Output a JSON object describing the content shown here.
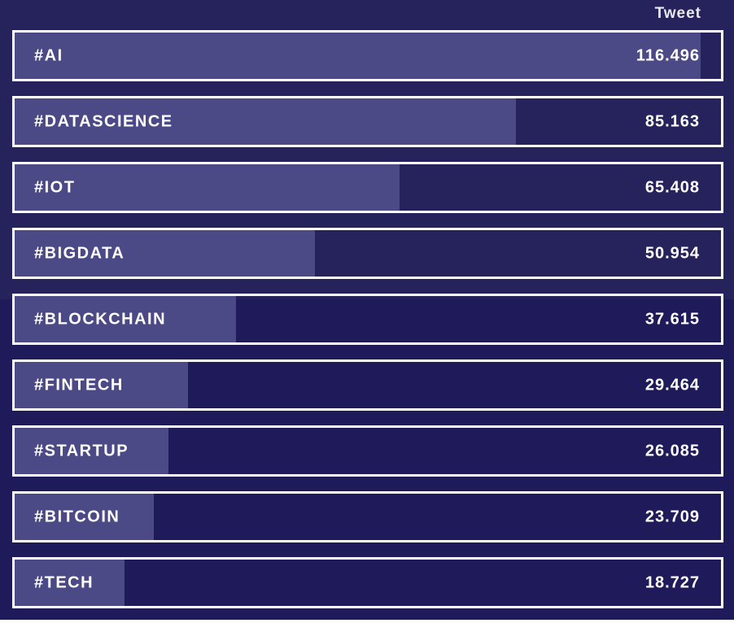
{
  "colors": {
    "background_top": "#26225c",
    "background_bottom": "#1f1a5a",
    "bar_fill": "#4c4a86",
    "border": "#ffffff",
    "text": "#ffffff"
  },
  "chart_data": {
    "type": "bar",
    "orientation": "horizontal",
    "title": "",
    "xlabel": "",
    "ylabel": "",
    "value_header": "Tweet",
    "categories": [
      "#AI",
      "#DATASCIENCE",
      "#IOT",
      "#BIGDATA",
      "#BLOCKCHAIN",
      "#FINTECH",
      "#STARTUP",
      "#BITCOIN",
      "#TECH"
    ],
    "values": [
      116496,
      85163,
      65408,
      50954,
      37615,
      29464,
      26085,
      23709,
      18727
    ],
    "value_labels": [
      "116.496",
      "85.163",
      "65.408",
      "50.954",
      "37.615",
      "29.464",
      "26.085",
      "23.709",
      "18.727"
    ],
    "xlim": [
      0,
      120000
    ],
    "grid": false,
    "legend": "none"
  }
}
